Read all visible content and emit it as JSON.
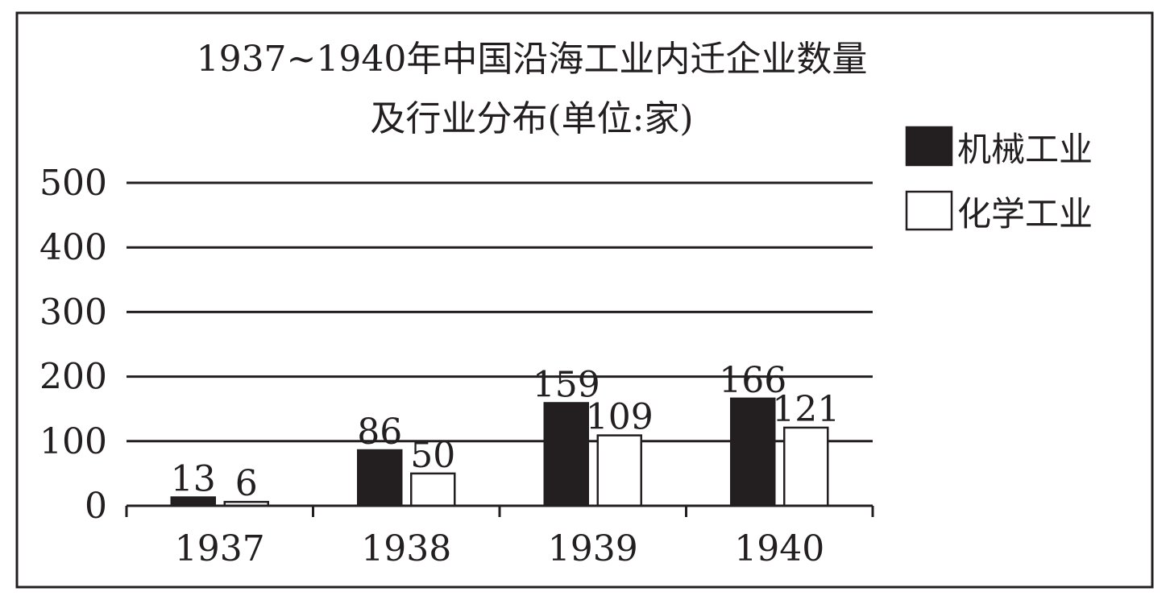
{
  "chart_data": {
    "type": "bar",
    "title": "1937~1940年中国沿海工业内迁企业数量",
    "subtitle": "及行业分布(单位:家)",
    "categories": [
      "1937",
      "1938",
      "1939",
      "1940"
    ],
    "series": [
      {
        "name": "机械工业",
        "values": [
          13,
          86,
          159,
          166
        ],
        "color": "#231f20"
      },
      {
        "name": "化学工业",
        "values": [
          6,
          50,
          109,
          121
        ],
        "color": "#ffffff"
      }
    ],
    "yticks": [
      0,
      100,
      200,
      300,
      400,
      500
    ],
    "ylim": [
      0,
      500
    ],
    "grid": true,
    "legend_position": "top-right",
    "xlabel": "",
    "ylabel": ""
  }
}
